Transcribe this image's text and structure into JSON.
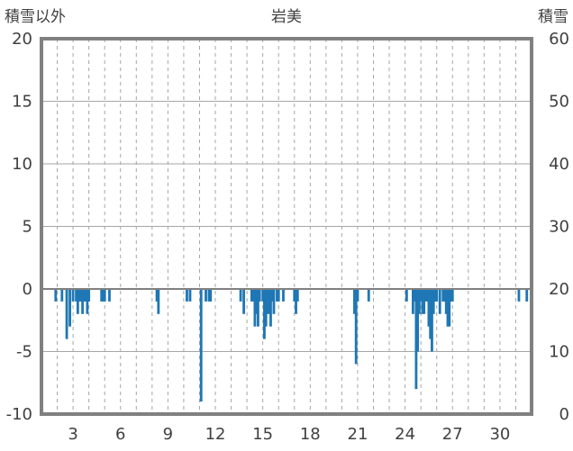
{
  "chart_data": {
    "type": "bar",
    "title": "岩美",
    "ylabel_left": "積雪以外",
    "ylabel_right": "積雪",
    "left_axis": {
      "min": -10,
      "max": 20,
      "ticks": [
        20,
        15,
        10,
        5,
        0,
        -5,
        -10
      ]
    },
    "right_axis": {
      "min": 0,
      "max": 60,
      "ticks": [
        60,
        50,
        40,
        30,
        20,
        10,
        0
      ]
    },
    "x_axis": {
      "min": 1,
      "max": 32,
      "tick_labels": [
        3,
        6,
        9,
        12,
        15,
        18,
        21,
        24,
        27,
        30
      ]
    },
    "grid": {
      "horizontal": "solid",
      "vertical": "dashed",
      "color": "#a6a6a6"
    },
    "bar_color": "#1f77b4",
    "frame_color": "#808080",
    "series": [
      {
        "x": [
          1.9,
          2.3,
          2.6,
          2.8,
          3.0,
          3.2,
          3.3,
          3.4,
          3.5,
          3.6,
          3.7,
          3.8,
          3.9,
          4.0,
          4.8,
          4.9,
          5.0,
          5.3,
          8.3,
          8.4,
          10.2,
          10.4,
          11.1,
          11.4,
          11.6,
          11.7,
          13.6,
          13.8,
          14.3,
          14.4,
          14.5,
          14.6,
          14.7,
          14.8,
          15.0,
          15.1,
          15.2,
          15.3,
          15.4,
          15.5,
          15.6,
          15.7,
          15.9,
          16.0,
          16.3,
          17.0,
          17.1,
          17.2,
          20.8,
          20.9,
          21.0,
          21.7,
          24.1,
          24.5,
          24.6,
          24.7,
          24.8,
          24.9,
          25.0,
          25.1,
          25.2,
          25.3,
          25.4,
          25.5,
          25.6,
          25.7,
          25.8,
          25.9,
          26.0,
          26.2,
          26.4,
          26.5,
          26.6,
          26.7,
          26.8,
          26.9,
          27.0,
          31.2,
          31.7
        ],
        "values": [
          -1,
          -1,
          -4,
          -3,
          -1,
          -1,
          -2,
          -1,
          -1,
          -2,
          -1,
          -1,
          -2,
          -1,
          -1,
          -1,
          -1,
          -1,
          -1,
          -2,
          -1,
          -1,
          -9,
          -1,
          -1,
          -1,
          -1,
          -2,
          -1,
          -1,
          -3,
          -2,
          -3,
          -1,
          -1,
          -4,
          -3,
          -2,
          -2,
          -3,
          -1,
          -2,
          -1,
          -1,
          -1,
          -1,
          -2,
          -1,
          -2,
          -6,
          -1,
          -1,
          -1,
          -2,
          -1,
          -8,
          -5,
          -2,
          -1,
          -2,
          -2,
          -1,
          -1,
          -3,
          -4,
          -5,
          -2,
          -1,
          -1,
          -2,
          -1,
          -1,
          -2,
          -3,
          -3,
          -1,
          -1,
          -1,
          -1
        ]
      }
    ]
  }
}
